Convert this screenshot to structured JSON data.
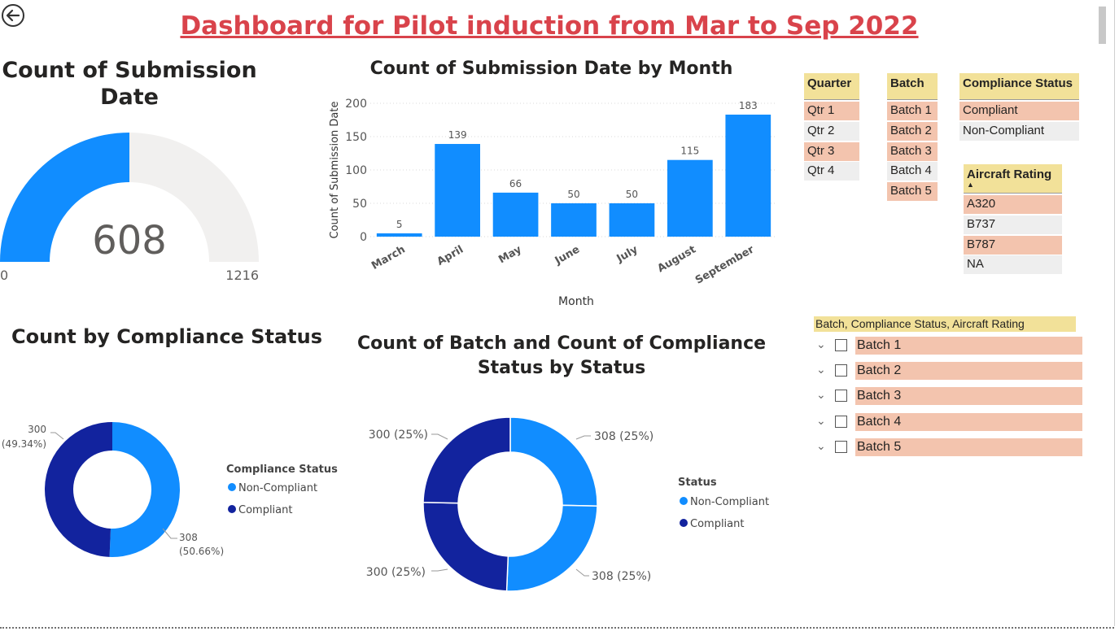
{
  "page": {
    "title": "Dashboard for Pilot induction from Mar to Sep 2022"
  },
  "colors": {
    "light_blue": "#118dff",
    "dark_blue": "#12239e",
    "gauge_bg": "#f1f0ef",
    "title_red": "#d9434b",
    "slicer_header": "#f2e199",
    "selected": "#f3c4ae",
    "unselected": "#eeeeee"
  },
  "gauge": {
    "title": "Count of Submission Date",
    "value": 608,
    "min": 0,
    "max": 1216,
    "value_label": "608",
    "min_label": "0",
    "max_label": "1216"
  },
  "bar_chart": {
    "title": "Count of Submission Date by Month"
  },
  "chart_data": [
    {
      "type": "bar",
      "title": "Count of Submission Date by Month",
      "categories": [
        "March",
        "April",
        "May",
        "June",
        "July",
        "August",
        "September"
      ],
      "values": [
        5,
        139,
        66,
        50,
        50,
        115,
        183
      ],
      "xlabel": "Month",
      "ylabel": "Count of Submission Date",
      "yticks": [
        "0",
        "50",
        "100",
        "150",
        "200"
      ],
      "ylim": [
        0,
        200
      ],
      "grid": true
    },
    {
      "type": "pie",
      "title": "Count by Compliance Status",
      "donut": true,
      "legend_title": "Compliance Status",
      "slices": [
        {
          "name": "Non-Compliant",
          "value": 308,
          "label": "308",
          "pct": "(50.66%)"
        },
        {
          "name": "Compliant",
          "value": 300,
          "label": "300",
          "pct": "(49.34%)"
        }
      ]
    },
    {
      "type": "pie",
      "title": "Count of Batch and Count of Compliance Status by Status",
      "donut": true,
      "legend_title": "Status",
      "legend": [
        "Non-Compliant",
        "Compliant"
      ],
      "slices": [
        {
          "value": 308,
          "label": "308 (25%)"
        },
        {
          "value": 308,
          "label": "308 (25%)"
        },
        {
          "value": 300,
          "label": "300 (25%)"
        },
        {
          "value": 300,
          "label": "300 (25%)"
        }
      ]
    }
  ],
  "donut1": {
    "title": "Count by Compliance Status",
    "legend_title": "Compliance Status",
    "legend": [
      "Non-Compliant",
      "Compliant"
    ],
    "label_nc": "308",
    "pct_nc": "(50.66%)",
    "label_c": "300",
    "pct_c": "(49.34%)"
  },
  "donut2": {
    "title_line1": "Count of Batch and Count of Compliance",
    "title_line2": "Status by Status",
    "legend_title": "Status",
    "legend": [
      "Non-Compliant",
      "Compliant"
    ],
    "labels": [
      "308 (25%)",
      "308 (25%)",
      "300 (25%)",
      "300 (25%)"
    ]
  },
  "slicers": {
    "quarter": {
      "header": "Quarter",
      "items": [
        {
          "label": "Qtr 1",
          "selected": true
        },
        {
          "label": "Qtr 2",
          "selected": false
        },
        {
          "label": "Qtr 3",
          "selected": true
        },
        {
          "label": "Qtr 4",
          "selected": false
        }
      ]
    },
    "batch": {
      "header": "Batch",
      "items": [
        {
          "label": "Batch 1",
          "selected": true
        },
        {
          "label": "Batch 2",
          "selected": true
        },
        {
          "label": "Batch 3",
          "selected": true
        },
        {
          "label": "Batch 4",
          "selected": false
        },
        {
          "label": "Batch 5",
          "selected": true
        }
      ]
    },
    "compliance": {
      "header": "Compliance Status",
      "items": [
        {
          "label": "Compliant",
          "selected": true
        },
        {
          "label": "Non-Compliant",
          "selected": false
        }
      ]
    },
    "aircraft": {
      "header": "Aircraft Rating",
      "sort_glyph": "▲",
      "items": [
        {
          "label": "A320",
          "selected": true
        },
        {
          "label": "B737",
          "selected": false
        },
        {
          "label": "B787",
          "selected": true
        },
        {
          "label": "NA",
          "selected": false
        }
      ]
    }
  },
  "hierarchy": {
    "header": "Batch, Compliance Status, Aircraft Rating",
    "items": [
      "Batch 1",
      "Batch 2",
      "Batch 3",
      "Batch 4",
      "Batch 5"
    ],
    "chevron": "⌄"
  }
}
